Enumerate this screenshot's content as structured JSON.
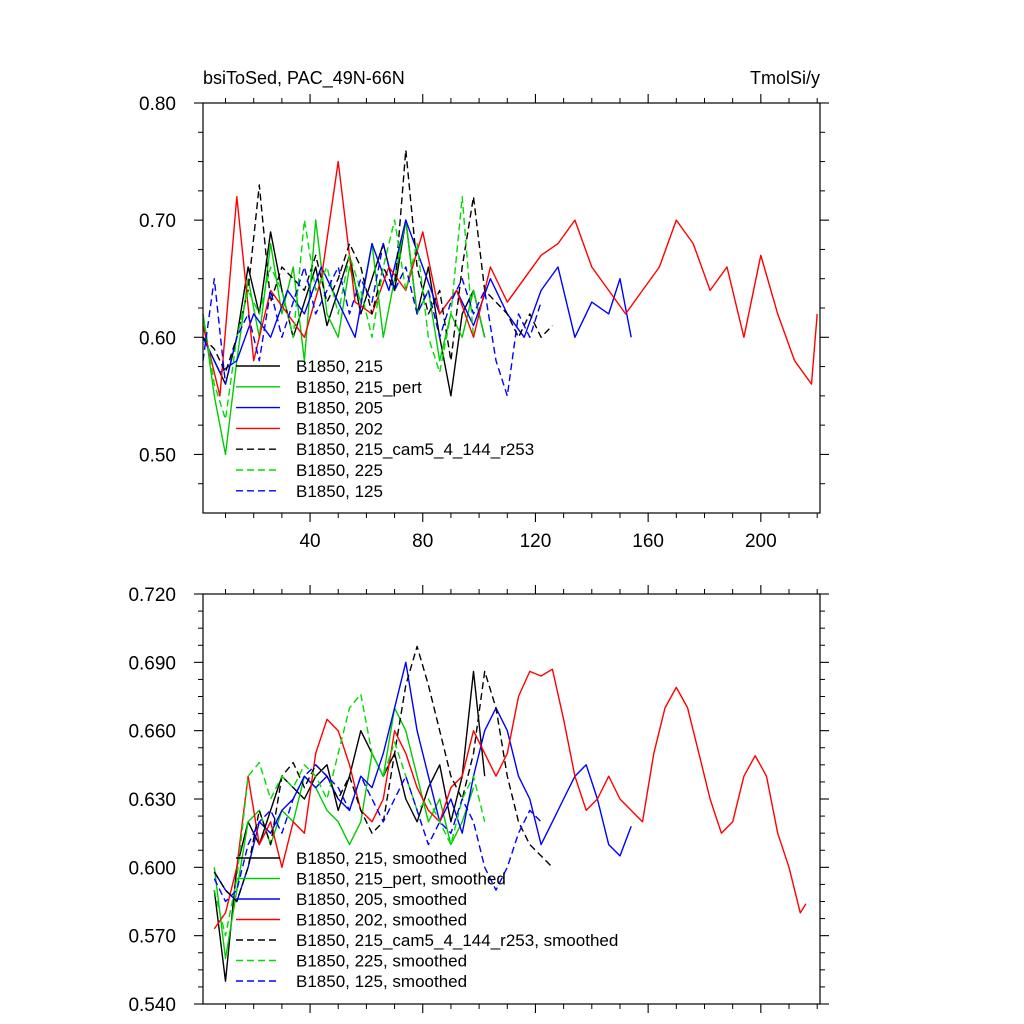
{
  "figure": {
    "title_left": "bsiToSed, PAC_49N-66N",
    "title_right": "TmolSi/y"
  },
  "chart_data": [
    {
      "type": "line",
      "panel": "top",
      "title": "bsiToSed, PAC_49N-66N",
      "units": "TmolSi/y",
      "xlim": [
        2,
        221
      ],
      "ylim": [
        0.45,
        0.8
      ],
      "xticks": [
        40,
        80,
        120,
        160,
        200
      ],
      "xtick_labels": [
        "40",
        "80",
        "120",
        "160",
        "200"
      ],
      "yticks": [
        0.5,
        0.6,
        0.7,
        0.8
      ],
      "ytick_labels": [
        "0.50",
        "0.60",
        "0.70",
        "0.80"
      ],
      "legend_position": "lower-left",
      "series": [
        {
          "name": "B1850, 215",
          "color": "#000000",
          "dash": "solid",
          "x": [
            2,
            6,
            10,
            14,
            18,
            22,
            26,
            30,
            34,
            38,
            42,
            46,
            50,
            54,
            58,
            62,
            66,
            70,
            74,
            78,
            82,
            86,
            90,
            94,
            98,
            102
          ],
          "values": [
            0.6,
            0.58,
            0.56,
            0.6,
            0.66,
            0.62,
            0.69,
            0.64,
            0.6,
            0.63,
            0.66,
            0.61,
            0.64,
            0.67,
            0.62,
            0.65,
            0.68,
            0.64,
            0.7,
            0.62,
            0.66,
            0.6,
            0.55,
            0.62,
            0.64,
            0.6
          ]
        },
        {
          "name": "B1850, 215_pert",
          "color": "#00cc00",
          "dash": "solid",
          "x": [
            2,
            6,
            10,
            14,
            18,
            22,
            26,
            30,
            34,
            38,
            42,
            46,
            50,
            54,
            58,
            62,
            66,
            70,
            74,
            78,
            82,
            86,
            90,
            94,
            98,
            102
          ],
          "values": [
            0.62,
            0.55,
            0.5,
            0.58,
            0.65,
            0.6,
            0.68,
            0.62,
            0.66,
            0.58,
            0.7,
            0.62,
            0.6,
            0.66,
            0.63,
            0.68,
            0.6,
            0.65,
            0.7,
            0.62,
            0.64,
            0.58,
            0.62,
            0.6,
            0.64,
            0.6
          ]
        },
        {
          "name": "B1850, 205",
          "color": "#0000ff",
          "dash": "solid",
          "x": [
            2,
            8,
            14,
            20,
            26,
            32,
            38,
            44,
            50,
            56,
            62,
            68,
            74,
            80,
            86,
            92,
            98,
            104,
            110,
            116,
            122,
            128,
            134,
            140,
            146,
            150,
            154
          ],
          "values": [
            0.6,
            0.57,
            0.58,
            0.62,
            0.6,
            0.64,
            0.62,
            0.66,
            0.63,
            0.6,
            0.68,
            0.64,
            0.7,
            0.66,
            0.62,
            0.64,
            0.61,
            0.65,
            0.62,
            0.6,
            0.64,
            0.66,
            0.6,
            0.63,
            0.62,
            0.65,
            0.6
          ]
        },
        {
          "name": "B1850, 202",
          "color": "#ff0000",
          "dash": "solid",
          "x": [
            2,
            8,
            14,
            20,
            26,
            32,
            38,
            44,
            50,
            56,
            62,
            68,
            74,
            80,
            86,
            92,
            98,
            104,
            110,
            116,
            122,
            128,
            134,
            140,
            146,
            152,
            158,
            164,
            170,
            176,
            182,
            188,
            194,
            200,
            206,
            212,
            218,
            220
          ],
          "values": [
            0.61,
            0.55,
            0.72,
            0.58,
            0.64,
            0.62,
            0.6,
            0.65,
            0.75,
            0.63,
            0.62,
            0.66,
            0.64,
            0.69,
            0.62,
            0.64,
            0.6,
            0.66,
            0.63,
            0.65,
            0.67,
            0.68,
            0.7,
            0.66,
            0.64,
            0.62,
            0.64,
            0.66,
            0.7,
            0.68,
            0.64,
            0.66,
            0.6,
            0.67,
            0.62,
            0.58,
            0.56,
            0.62
          ]
        },
        {
          "name": "B1850, 215_cam5_4_144_r253",
          "color": "#000000",
          "dash": "dash",
          "x": [
            2,
            6,
            10,
            14,
            18,
            22,
            26,
            30,
            34,
            38,
            42,
            46,
            50,
            54,
            58,
            62,
            66,
            70,
            74,
            78,
            82,
            86,
            90,
            94,
            98,
            102,
            106,
            110,
            114,
            118,
            122,
            126
          ],
          "values": [
            0.6,
            0.59,
            0.57,
            0.6,
            0.64,
            0.73,
            0.63,
            0.66,
            0.65,
            0.64,
            0.67,
            0.63,
            0.65,
            0.68,
            0.66,
            0.62,
            0.66,
            0.64,
            0.76,
            0.66,
            0.62,
            0.64,
            0.58,
            0.66,
            0.72,
            0.64,
            0.63,
            0.62,
            0.6,
            0.62,
            0.6,
            0.61
          ]
        },
        {
          "name": "B1850, 225",
          "color": "#00dd00",
          "dash": "dash",
          "x": [
            2,
            6,
            10,
            14,
            18,
            22,
            26,
            30,
            34,
            38,
            42,
            46,
            50,
            54,
            58,
            62,
            66,
            70,
            74,
            78,
            82,
            86,
            90,
            94,
            98
          ],
          "values": [
            0.62,
            0.56,
            0.53,
            0.6,
            0.64,
            0.62,
            0.66,
            0.64,
            0.6,
            0.7,
            0.64,
            0.66,
            0.62,
            0.67,
            0.64,
            0.6,
            0.66,
            0.7,
            0.64,
            0.68,
            0.6,
            0.57,
            0.62,
            0.72,
            0.6
          ]
        },
        {
          "name": "B1850, 125",
          "color": "#0000ff",
          "dash": "dash",
          "x": [
            2,
            6,
            10,
            14,
            18,
            22,
            26,
            30,
            34,
            38,
            42,
            46,
            50,
            54,
            58,
            62,
            66,
            70,
            74,
            78,
            82,
            86,
            90,
            94,
            98,
            102,
            106,
            110,
            114,
            118,
            122
          ],
          "values": [
            0.58,
            0.65,
            0.56,
            0.6,
            0.62,
            0.58,
            0.64,
            0.6,
            0.63,
            0.66,
            0.62,
            0.64,
            0.66,
            0.62,
            0.65,
            0.63,
            0.68,
            0.64,
            0.66,
            0.62,
            0.64,
            0.6,
            0.63,
            0.65,
            0.62,
            0.64,
            0.58,
            0.55,
            0.62,
            0.6,
            0.63
          ]
        }
      ]
    },
    {
      "type": "line",
      "panel": "bottom",
      "xlim": [
        2,
        221
      ],
      "ylim": [
        0.54,
        0.72
      ],
      "xticks": [
        40,
        80,
        120,
        160,
        200
      ],
      "yticks": [
        0.54,
        0.57,
        0.6,
        0.63,
        0.66,
        0.69,
        0.72
      ],
      "ytick_labels": [
        "0.540",
        "0.570",
        "0.600",
        "0.630",
        "0.660",
        "0.690",
        "0.720"
      ],
      "legend_position": "lower-left",
      "series": [
        {
          "name": "B1850, 215, smoothed",
          "color": "#000000",
          "dash": "solid",
          "x": [
            6,
            10,
            14,
            18,
            22,
            26,
            30,
            34,
            38,
            42,
            46,
            50,
            54,
            58,
            62,
            66,
            70,
            74,
            78,
            82,
            86,
            90,
            94,
            98,
            102
          ],
          "values": [
            0.59,
            0.55,
            0.6,
            0.62,
            0.61,
            0.625,
            0.64,
            0.635,
            0.63,
            0.64,
            0.645,
            0.625,
            0.64,
            0.66,
            0.65,
            0.64,
            0.65,
            0.63,
            0.62,
            0.635,
            0.645,
            0.62,
            0.64,
            0.686,
            0.64
          ]
        },
        {
          "name": "B1850, 215_pert, smoothed",
          "color": "#00cc00",
          "dash": "solid",
          "x": [
            6,
            10,
            14,
            18,
            22,
            26,
            30,
            34,
            38,
            42,
            46,
            50,
            54,
            58,
            62,
            66,
            70,
            74,
            78,
            82,
            86,
            90,
            94,
            98
          ],
          "values": [
            0.6,
            0.56,
            0.59,
            0.62,
            0.625,
            0.61,
            0.625,
            0.62,
            0.64,
            0.635,
            0.625,
            0.62,
            0.61,
            0.62,
            0.65,
            0.64,
            0.67,
            0.66,
            0.64,
            0.62,
            0.63,
            0.61,
            0.62,
            0.635
          ]
        },
        {
          "name": "B1850, 205, smoothed",
          "color": "#0000ff",
          "dash": "solid",
          "x": [
            6,
            10,
            14,
            18,
            22,
            26,
            30,
            34,
            38,
            42,
            46,
            50,
            54,
            58,
            62,
            66,
            70,
            74,
            78,
            82,
            86,
            90,
            94,
            98,
            102,
            106,
            110,
            114,
            118,
            122,
            126,
            130,
            134,
            138,
            142,
            146,
            150,
            154
          ],
          "values": [
            0.598,
            0.59,
            0.585,
            0.6,
            0.62,
            0.615,
            0.625,
            0.63,
            0.64,
            0.635,
            0.64,
            0.63,
            0.625,
            0.64,
            0.635,
            0.65,
            0.67,
            0.69,
            0.66,
            0.64,
            0.62,
            0.63,
            0.615,
            0.64,
            0.66,
            0.67,
            0.66,
            0.64,
            0.63,
            0.61,
            0.62,
            0.63,
            0.64,
            0.645,
            0.63,
            0.61,
            0.605,
            0.618
          ]
        },
        {
          "name": "B1850, 202, smoothed",
          "color": "#ff0000",
          "dash": "solid",
          "x": [
            6,
            10,
            14,
            18,
            22,
            26,
            30,
            34,
            38,
            42,
            46,
            50,
            54,
            58,
            62,
            66,
            70,
            74,
            78,
            82,
            86,
            90,
            94,
            98,
            102,
            106,
            110,
            114,
            118,
            122,
            126,
            130,
            134,
            138,
            142,
            146,
            150,
            154,
            158,
            162,
            166,
            170,
            174,
            178,
            182,
            186,
            190,
            194,
            198,
            202,
            206,
            210,
            214,
            216
          ],
          "values": [
            0.573,
            0.58,
            0.6,
            0.64,
            0.61,
            0.62,
            0.6,
            0.62,
            0.615,
            0.65,
            0.665,
            0.66,
            0.645,
            0.625,
            0.62,
            0.63,
            0.66,
            0.65,
            0.635,
            0.625,
            0.62,
            0.635,
            0.64,
            0.66,
            0.65,
            0.64,
            0.65,
            0.675,
            0.686,
            0.684,
            0.687,
            0.665,
            0.64,
            0.625,
            0.63,
            0.64,
            0.63,
            0.625,
            0.62,
            0.65,
            0.67,
            0.679,
            0.67,
            0.65,
            0.63,
            0.615,
            0.62,
            0.64,
            0.649,
            0.64,
            0.615,
            0.6,
            0.58,
            0.584
          ]
        },
        {
          "name": "B1850, 215_cam5_4_144_r253, smoothed",
          "color": "#000000",
          "dash": "dash",
          "x": [
            6,
            10,
            14,
            18,
            22,
            26,
            30,
            34,
            38,
            42,
            46,
            50,
            54,
            58,
            62,
            66,
            70,
            74,
            78,
            82,
            86,
            90,
            94,
            98,
            102,
            106,
            110,
            114,
            118,
            122,
            126
          ],
          "values": [
            0.598,
            0.59,
            0.585,
            0.6,
            0.625,
            0.61,
            0.64,
            0.646,
            0.635,
            0.645,
            0.64,
            0.63,
            0.64,
            0.625,
            0.615,
            0.62,
            0.65,
            0.68,
            0.697,
            0.68,
            0.66,
            0.64,
            0.63,
            0.65,
            0.686,
            0.67,
            0.64,
            0.62,
            0.61,
            0.605,
            0.6
          ]
        },
        {
          "name": "B1850, 225, smoothed",
          "color": "#00dd00",
          "dash": "dash",
          "x": [
            6,
            10,
            14,
            18,
            22,
            26,
            30,
            34,
            38,
            42,
            46,
            50,
            54,
            58,
            62,
            66,
            70,
            74,
            78,
            82,
            86,
            90,
            94,
            98,
            102
          ],
          "values": [
            0.59,
            0.57,
            0.595,
            0.64,
            0.646,
            0.63,
            0.64,
            0.635,
            0.645,
            0.64,
            0.63,
            0.65,
            0.67,
            0.676,
            0.65,
            0.64,
            0.655,
            0.64,
            0.625,
            0.63,
            0.62,
            0.61,
            0.63,
            0.64,
            0.62
          ]
        },
        {
          "name": "B1850, 125, smoothed",
          "color": "#0000ff",
          "dash": "dash",
          "x": [
            6,
            10,
            14,
            18,
            22,
            26,
            30,
            34,
            38,
            42,
            46,
            50,
            54,
            58,
            62,
            66,
            70,
            74,
            78,
            82,
            86,
            90,
            94,
            98,
            102,
            106,
            110,
            114,
            118,
            122
          ],
          "values": [
            0.595,
            0.585,
            0.59,
            0.61,
            0.62,
            0.625,
            0.615,
            0.63,
            0.64,
            0.645,
            0.64,
            0.635,
            0.625,
            0.64,
            0.63,
            0.62,
            0.63,
            0.64,
            0.625,
            0.61,
            0.62,
            0.615,
            0.63,
            0.62,
            0.6,
            0.59,
            0.6,
            0.615,
            0.625,
            0.62
          ]
        }
      ]
    }
  ]
}
